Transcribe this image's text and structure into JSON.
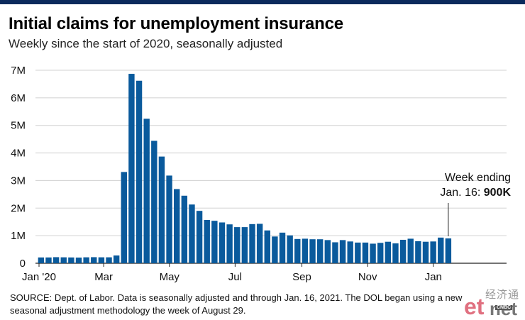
{
  "header": {
    "title": "Initial claims for unemployment insurance",
    "subtitle": "Weekly since the start of 2020, seasonally adjusted"
  },
  "footer": {
    "source": "SOURCE: Dept. of Labor. Data is seasonally adjusted and through Jan. 16, 2021. The DOL began using a new seasonal adjustment methodology the week of August 29."
  },
  "watermark": {
    "text_cn": "经济通",
    "text_et": "et",
    "text_net": "net",
    "text_cnbc": "CNBC"
  },
  "colors": {
    "bar": "#0a5a9c",
    "topbar": "#0b2a5c",
    "grid": "#d0d0d0"
  },
  "chart_data": {
    "type": "bar",
    "title": "Initial claims for unemployment insurance",
    "subtitle": "Weekly since the start of 2020, seasonally adjusted",
    "x_tick_labels": [
      "Jan '20",
      "Mar",
      "May",
      "Jul",
      "Sep",
      "Nov",
      "Jan"
    ],
    "y_tick_labels": [
      "0",
      "1M",
      "2M",
      "3M",
      "4M",
      "5M",
      "6M",
      "7M"
    ],
    "ylim": [
      0,
      7000000
    ],
    "grid": true,
    "week_ending_dates": [
      "2020-01-04",
      "2020-01-11",
      "2020-01-18",
      "2020-01-25",
      "2020-02-01",
      "2020-02-08",
      "2020-02-15",
      "2020-02-22",
      "2020-02-29",
      "2020-03-07",
      "2020-03-14",
      "2020-03-21",
      "2020-03-28",
      "2020-04-04",
      "2020-04-11",
      "2020-04-18",
      "2020-04-25",
      "2020-05-02",
      "2020-05-09",
      "2020-05-16",
      "2020-05-23",
      "2020-05-30",
      "2020-06-06",
      "2020-06-13",
      "2020-06-20",
      "2020-06-27",
      "2020-07-04",
      "2020-07-11",
      "2020-07-18",
      "2020-07-25",
      "2020-08-01",
      "2020-08-08",
      "2020-08-15",
      "2020-08-22",
      "2020-08-29",
      "2020-09-05",
      "2020-09-12",
      "2020-09-19",
      "2020-09-26",
      "2020-10-03",
      "2020-10-10",
      "2020-10-17",
      "2020-10-24",
      "2020-10-31",
      "2020-11-07",
      "2020-11-14",
      "2020-11-21",
      "2020-11-28",
      "2020-12-05",
      "2020-12-12",
      "2020-12-19",
      "2020-12-26",
      "2021-01-02",
      "2021-01-09",
      "2021-01-16"
    ],
    "values": [
      210000,
      210000,
      220000,
      215000,
      210000,
      205000,
      215000,
      220000,
      215000,
      215000,
      280000,
      3310000,
      6870000,
      6620000,
      5240000,
      4440000,
      3870000,
      3180000,
      2690000,
      2450000,
      2130000,
      1900000,
      1570000,
      1540000,
      1480000,
      1410000,
      1310000,
      1310000,
      1420000,
      1430000,
      1190000,
      970000,
      1110000,
      1010000,
      880000,
      890000,
      870000,
      870000,
      840000,
      760000,
      840000,
      790000,
      750000,
      750000,
      710000,
      740000,
      780000,
      720000,
      850000,
      890000,
      800000,
      780000,
      790000,
      930000,
      900000
    ],
    "annotation": {
      "line1": "Week ending",
      "line2_prefix": "Jan. 16: ",
      "line2_value": "900K"
    }
  }
}
